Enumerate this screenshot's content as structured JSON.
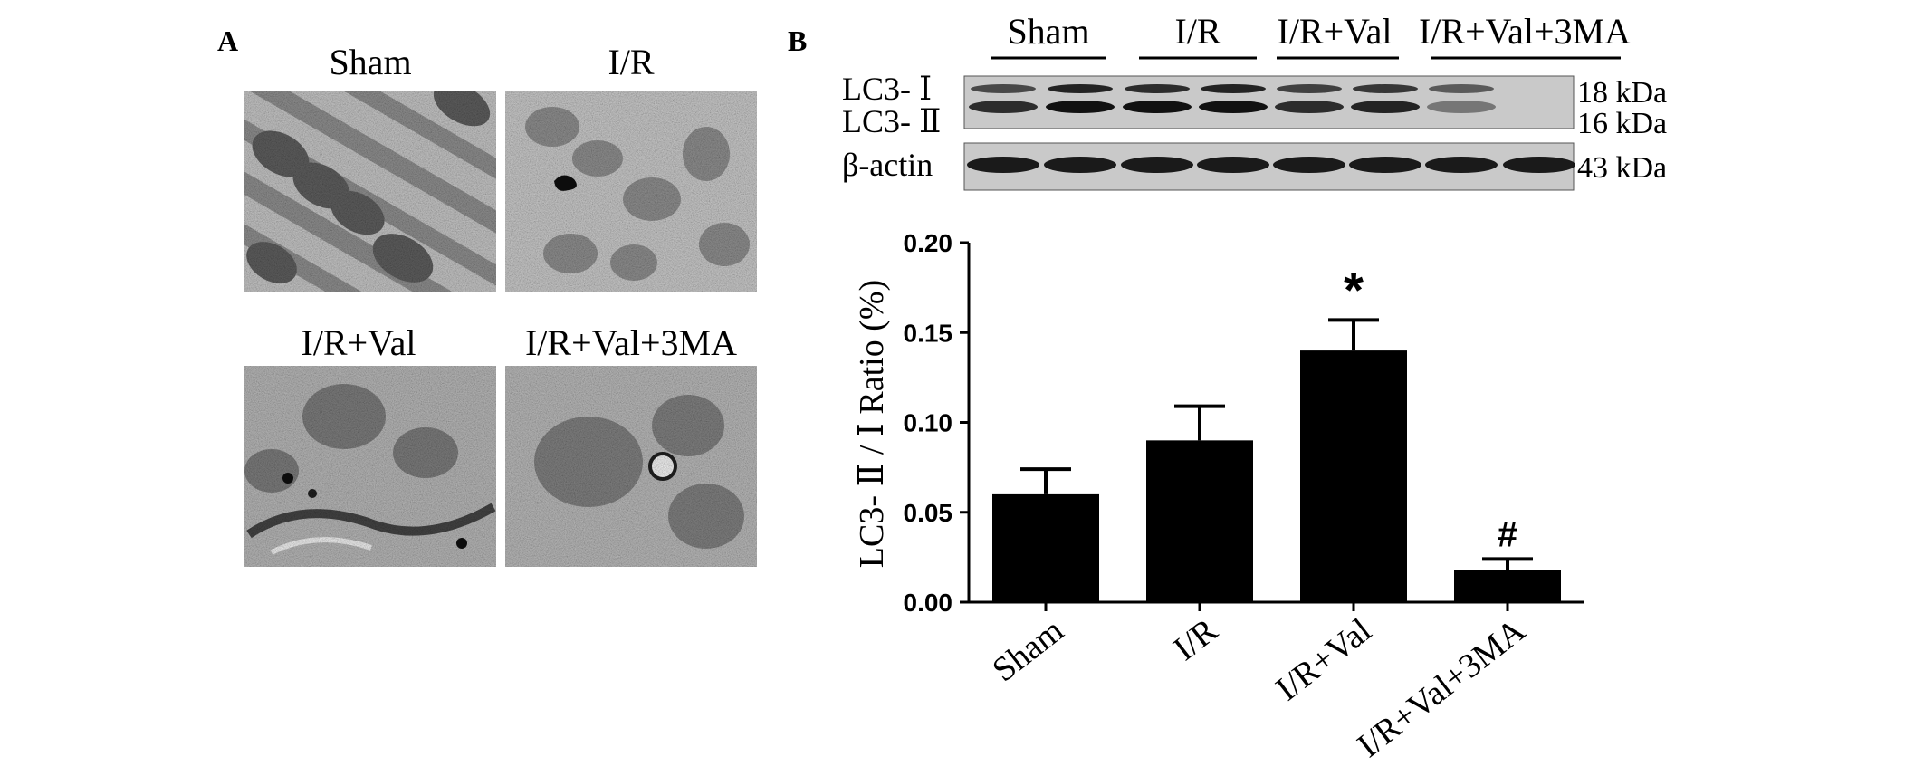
{
  "panel_a": {
    "label": "A",
    "images": [
      {
        "label": "Sham"
      },
      {
        "label": "I/R"
      },
      {
        "label": "I/R+Val"
      },
      {
        "label": "I/R+Val+3MA"
      }
    ]
  },
  "panel_b": {
    "label": "B",
    "blot": {
      "groups": [
        "Sham",
        "I/R",
        "I/R+Val",
        "I/R+Val+3MA"
      ],
      "row_labels": [
        "LC3- Ⅰ",
        "LC3- Ⅱ",
        "β-actin"
      ],
      "kda_labels": [
        "18 kDa",
        "16 kDa",
        "43 kDa"
      ]
    }
  },
  "colors": {
    "bars": "#000000",
    "background": "#ffffff"
  },
  "chart_data": {
    "type": "bar",
    "categories": [
      "Sham",
      "I/R",
      "I/R+Val",
      "I/R+Val+3MA"
    ],
    "values": [
      0.06,
      0.09,
      0.14,
      0.018
    ],
    "errors": [
      0.014,
      0.019,
      0.017,
      0.006
    ],
    "annotations": [
      "",
      "",
      "*",
      "#"
    ],
    "title": "",
    "xlabel": "",
    "ylabel": "LC3- Ⅱ / Ⅰ Ratio (%)",
    "ylim": [
      0,
      0.2
    ],
    "yticks": [
      "0.00",
      "0.05",
      "0.10",
      "0.15",
      "0.20"
    ]
  }
}
